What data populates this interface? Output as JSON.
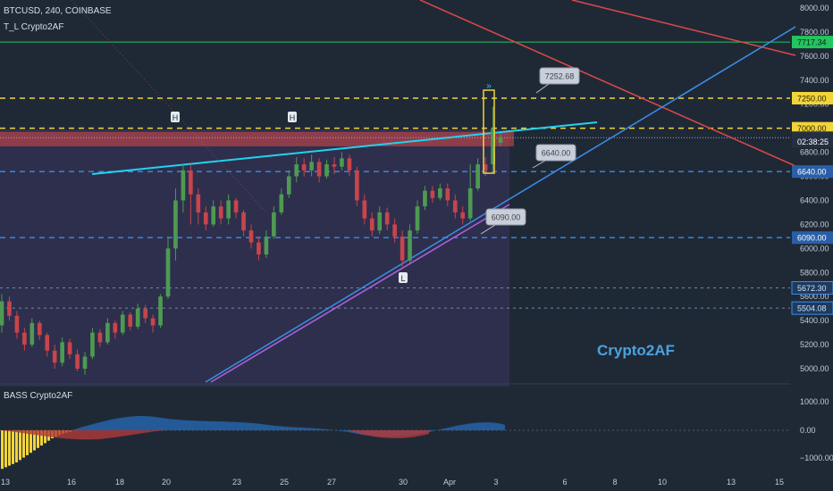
{
  "header": {
    "title": "BTCUSD, 240, COINBASE",
    "indicator": "T_L Crypto2AF",
    "sub_indicator": "BASS Crypto2AF"
  },
  "watermark": "Crypto2AF",
  "colors": {
    "bg": "#1f2936",
    "up": "#4e9a52",
    "down": "#c9444c",
    "yellow": "#f2d43a",
    "cyan": "#22d3ee",
    "blue": "#3b8ee8",
    "red": "#e04848",
    "green": "#22c55e",
    "zone": "#5a3a66"
  },
  "chart_data": {
    "type": "candlestick",
    "price_axis": [
      "8000.00",
      "7800.00",
      "7600.00",
      "7400.00",
      "7200.00",
      "7000.00",
      "6800.00",
      "6600.00",
      "6400.00",
      "6200.00",
      "6000.00",
      "5800.00",
      "5600.00",
      "5400.00",
      "5200.00",
      "5000.00"
    ],
    "indicator_axis": [
      "1000.00",
      "0.00",
      "−1000.00"
    ],
    "x_ticks": [
      "13",
      "16",
      "18",
      "20",
      "23",
      "25",
      "27",
      "30",
      "Apr",
      "3",
      "6",
      "8",
      "10",
      "13",
      "15"
    ],
    "levels": [
      {
        "label": "7717.34",
        "value": 7717.34,
        "style": "green"
      },
      {
        "label": "7250.00",
        "value": 7250,
        "style": "yellow-dash"
      },
      {
        "label": "7000.00",
        "value": 7000,
        "style": "yellow-dash"
      },
      {
        "label": "6921.24",
        "value": 6921.24,
        "style": "price"
      },
      {
        "label": "02:38:25",
        "value": 6890,
        "style": "timer"
      },
      {
        "label": "6640.00",
        "value": 6640,
        "style": "blue-dash"
      },
      {
        "label": "6090.00",
        "value": 6090,
        "style": "blue-dash"
      },
      {
        "label": "5672.30",
        "value": 5672.3,
        "style": "dotted"
      },
      {
        "label": "5504.08",
        "value": 5504.08,
        "style": "dotted"
      }
    ],
    "callouts": [
      "7252.68",
      "6640.00",
      "6090.00"
    ],
    "markers": [
      "H",
      "H",
      "L"
    ],
    "candles": [
      [
        5360,
        5560,
        5300,
        5620
      ],
      [
        5560,
        5440,
        5400,
        5600
      ],
      [
        5440,
        5300,
        5250,
        5480
      ],
      [
        5300,
        5200,
        5150,
        5340
      ],
      [
        5200,
        5380,
        5180,
        5420
      ],
      [
        5380,
        5280,
        5240,
        5400
      ],
      [
        5280,
        5150,
        5100,
        5300
      ],
      [
        5150,
        5050,
        5000,
        5200
      ],
      [
        5050,
        5220,
        5020,
        5260
      ],
      [
        5220,
        5120,
        5080,
        5250
      ],
      [
        5120,
        5000,
        4980,
        5160
      ],
      [
        5000,
        5100,
        4950,
        5140
      ],
      [
        5100,
        5300,
        5080,
        5340
      ],
      [
        5300,
        5220,
        5180,
        5330
      ],
      [
        5220,
        5380,
        5200,
        5420
      ],
      [
        5380,
        5300,
        5250,
        5400
      ],
      [
        5300,
        5450,
        5280,
        5480
      ],
      [
        5450,
        5350,
        5320,
        5470
      ],
      [
        5350,
        5500,
        5330,
        5540
      ],
      [
        5500,
        5420,
        5380,
        5530
      ],
      [
        5420,
        5360,
        5300,
        5450
      ],
      [
        5360,
        5600,
        5340,
        5620
      ],
      [
        5600,
        6000,
        5580,
        6100
      ],
      [
        6000,
        6400,
        5900,
        6500
      ],
      [
        6400,
        6650,
        6300,
        6700
      ],
      [
        6650,
        6450,
        6200,
        6700
      ],
      [
        6450,
        6300,
        6200,
        6500
      ],
      [
        6300,
        6200,
        6150,
        6350
      ],
      [
        6200,
        6350,
        6180,
        6400
      ],
      [
        6350,
        6250,
        6200,
        6400
      ],
      [
        6250,
        6400,
        6200,
        6450
      ],
      [
        6400,
        6300,
        6250,
        6420
      ],
      [
        6300,
        6150,
        6100,
        6320
      ],
      [
        6150,
        6050,
        6000,
        6200
      ],
      [
        6050,
        5950,
        5900,
        6100
      ],
      [
        5950,
        6100,
        5920,
        6150
      ],
      [
        6100,
        6300,
        6080,
        6350
      ],
      [
        6300,
        6450,
        6280,
        6500
      ],
      [
        6450,
        6600,
        6420,
        6650
      ],
      [
        6600,
        6700,
        6550,
        6760
      ],
      [
        6700,
        6650,
        6600,
        6750
      ],
      [
        6650,
        6720,
        6600,
        6780
      ],
      [
        6720,
        6600,
        6550,
        6750
      ],
      [
        6600,
        6700,
        6580,
        6740
      ],
      [
        6700,
        6680,
        6620,
        6760
      ],
      [
        6680,
        6750,
        6650,
        6800
      ],
      [
        6750,
        6650,
        6600,
        6780
      ],
      [
        6650,
        6400,
        6350,
        6680
      ],
      [
        6400,
        6250,
        6200,
        6450
      ],
      [
        6250,
        6150,
        6100,
        6300
      ],
      [
        6150,
        6300,
        6120,
        6350
      ],
      [
        6300,
        6200,
        6150,
        6340
      ],
      [
        6200,
        6100,
        6050,
        6250
      ],
      [
        6100,
        5900,
        5850,
        6150
      ],
      [
        5900,
        6150,
        5880,
        6200
      ],
      [
        6150,
        6350,
        6120,
        6400
      ],
      [
        6350,
        6480,
        6320,
        6520
      ],
      [
        6480,
        6420,
        6380,
        6520
      ],
      [
        6420,
        6500,
        6400,
        6540
      ],
      [
        6500,
        6400,
        6350,
        6540
      ],
      [
        6400,
        6300,
        6250,
        6450
      ],
      [
        6300,
        6250,
        6200,
        6350
      ],
      [
        6250,
        6500,
        6230,
        6700
      ],
      [
        6500,
        6700,
        6480,
        6750
      ],
      [
        6700,
        6650,
        6600,
        6760
      ],
      [
        6700,
        7000,
        6650,
        7180
      ],
      [
        6880,
        6921,
        6850,
        6960
      ]
    ]
  }
}
